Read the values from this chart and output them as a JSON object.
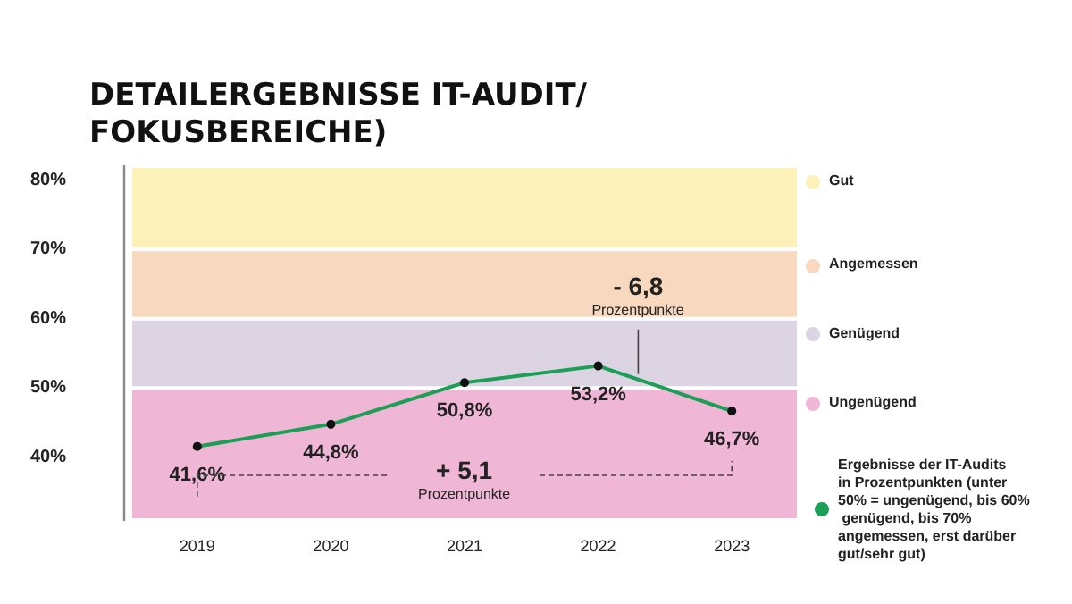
{
  "chart_data": {
    "type": "line",
    "title": "DETAILERGEBNISSE IT-AUDIT/FOKUSBEREICHE)",
    "categories": [
      "2019",
      "2020",
      "2021",
      "2022",
      "2023"
    ],
    "series": [
      {
        "name": "Ergebnisse der IT-Audits in Prozentpunkten (unter 50% = ungenügend, bis 60% genügend, bis 70% angemessen, erst darüber gut/sehr gut)",
        "color": "#1a9f55",
        "values": [
          41.6,
          44.8,
          50.8,
          53.2,
          46.7
        ],
        "value_labels": [
          "41,6%",
          "44,8%",
          "50,8%",
          "53,2%",
          "46,7%"
        ]
      }
    ],
    "ylim": [
      31,
      82
    ],
    "yticks": [
      {
        "value": 40,
        "label": "40%"
      },
      {
        "value": 50,
        "label": "50%"
      },
      {
        "value": 60,
        "label": "60%"
      },
      {
        "value": 70,
        "label": "70%"
      },
      {
        "value": 80,
        "label": "80%"
      }
    ],
    "bands": [
      {
        "axis": "y",
        "from": 70,
        "to": 82,
        "label": "Gut",
        "color": "#fcf1b8"
      },
      {
        "axis": "y",
        "from": 60,
        "to": 70,
        "label": "Angemessen",
        "color": "#f8d8be"
      },
      {
        "axis": "y",
        "from": 50,
        "to": 60,
        "label": "Genügend",
        "color": "#dcd3e3"
      },
      {
        "axis": "y",
        "from": 31,
        "to": 50,
        "label": "Ungenügend",
        "color": "#efb6d6"
      }
    ],
    "annotations": [
      "- 6,8",
      "Prozentpunkte",
      "+ 5,1",
      "Prozentpunkte"
    ],
    "marker": "circle",
    "line_style": "solid",
    "legend": "right"
  }
}
